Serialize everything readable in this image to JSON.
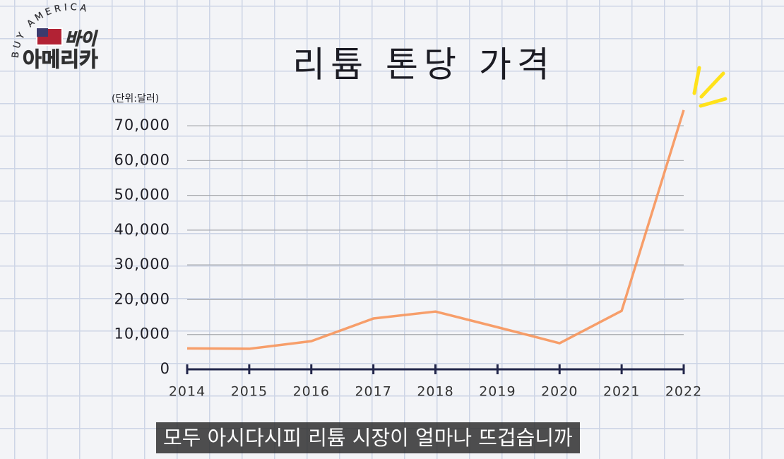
{
  "logo": {
    "arc_text": "BUY AMERICA",
    "line1": "바이",
    "line2": "아메리카"
  },
  "chart_data": {
    "type": "line",
    "title": "리튬 톤당 가격",
    "unit_label": "(단위:달러)",
    "categories": [
      "2014",
      "2015",
      "2016",
      "2017",
      "2018",
      "2019",
      "2020",
      "2021",
      "2022"
    ],
    "series": [
      {
        "name": "리튬 톤당 가격",
        "color": "#f7955a",
        "values": [
          6000,
          5900,
          8100,
          14600,
          16600,
          12100,
          7500,
          16800,
          74500
        ]
      }
    ],
    "ylim": [
      0,
      75000
    ],
    "yticks": [
      0,
      {
        "value": 10000,
        "label": "10,000"
      },
      {
        "value": 20000,
        "label": "20,000"
      },
      {
        "value": 30000,
        "label": "30,000"
      },
      {
        "value": 40000,
        "label": "40,000"
      },
      {
        "value": 50000,
        "label": "50,000"
      },
      {
        "value": 60000,
        "label": "60,000"
      },
      {
        "value": 70000,
        "label": "70,000"
      }
    ],
    "grid": true
  },
  "caption": "모두 아시다시피 리튬 시장이 얼마나 뜨겁습니까"
}
